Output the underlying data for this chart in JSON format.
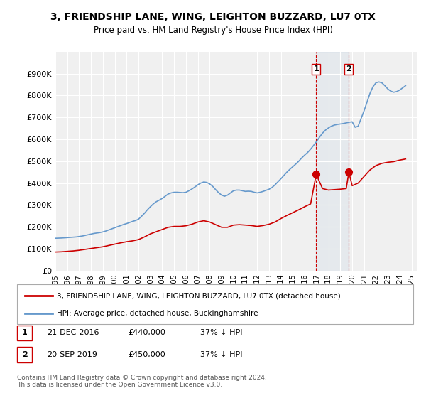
{
  "title": "3, FRIENDSHIP LANE, WING, LEIGHTON BUZZARD, LU7 0TX",
  "subtitle": "Price paid vs. HM Land Registry's House Price Index (HPI)",
  "ylabel": "",
  "ylim": [
    0,
    1000000
  ],
  "yticks": [
    0,
    100000,
    200000,
    300000,
    400000,
    500000,
    600000,
    700000,
    800000,
    900000
  ],
  "ytick_labels": [
    "£0",
    "£100K",
    "£200K",
    "£300K",
    "£400K",
    "£500K",
    "£600K",
    "£700K",
    "£800K",
    "£900K"
  ],
  "background_color": "#ffffff",
  "plot_bg_color": "#f0f0f0",
  "hpi_color": "#6699cc",
  "price_color": "#cc0000",
  "vline_color": "#cc0000",
  "sale1_date": 2016.97,
  "sale1_price": 440000,
  "sale2_date": 2019.72,
  "sale2_price": 450000,
  "legend_label_price": "3, FRIENDSHIP LANE, WING, LEIGHTON BUZZARD, LU7 0TX (detached house)",
  "legend_label_hpi": "HPI: Average price, detached house, Buckinghamshire",
  "annotation1_label": "1",
  "annotation1_date": "21-DEC-2016",
  "annotation1_price": "£440,000",
  "annotation1_hpi": "37% ↓ HPI",
  "annotation2_label": "2",
  "annotation2_date": "20-SEP-2019",
  "annotation2_price": "£450,000",
  "annotation2_hpi": "37% ↓ HPI",
  "footer": "Contains HM Land Registry data © Crown copyright and database right 2024.\nThis data is licensed under the Open Government Licence v3.0.",
  "hpi_data": {
    "years": [
      1995.0,
      1995.25,
      1995.5,
      1995.75,
      1996.0,
      1996.25,
      1996.5,
      1996.75,
      1997.0,
      1997.25,
      1997.5,
      1997.75,
      1998.0,
      1998.25,
      1998.5,
      1998.75,
      1999.0,
      1999.25,
      1999.5,
      1999.75,
      2000.0,
      2000.25,
      2000.5,
      2000.75,
      2001.0,
      2001.25,
      2001.5,
      2001.75,
      2002.0,
      2002.25,
      2002.5,
      2002.75,
      2003.0,
      2003.25,
      2003.5,
      2003.75,
      2004.0,
      2004.25,
      2004.5,
      2004.75,
      2005.0,
      2005.25,
      2005.5,
      2005.75,
      2006.0,
      2006.25,
      2006.5,
      2006.75,
      2007.0,
      2007.25,
      2007.5,
      2007.75,
      2008.0,
      2008.25,
      2008.5,
      2008.75,
      2009.0,
      2009.25,
      2009.5,
      2009.75,
      2010.0,
      2010.25,
      2010.5,
      2010.75,
      2011.0,
      2011.25,
      2011.5,
      2011.75,
      2012.0,
      2012.25,
      2012.5,
      2012.75,
      2013.0,
      2013.25,
      2013.5,
      2013.75,
      2014.0,
      2014.25,
      2014.5,
      2014.75,
      2015.0,
      2015.25,
      2015.5,
      2015.75,
      2016.0,
      2016.25,
      2016.5,
      2016.75,
      2017.0,
      2017.25,
      2017.5,
      2017.75,
      2018.0,
      2018.25,
      2018.5,
      2018.75,
      2019.0,
      2019.25,
      2019.5,
      2019.75,
      2020.0,
      2020.25,
      2020.5,
      2020.75,
      2021.0,
      2021.25,
      2021.5,
      2021.75,
      2022.0,
      2022.25,
      2022.5,
      2022.75,
      2023.0,
      2023.25,
      2023.5,
      2023.75,
      2024.0,
      2024.25,
      2024.5
    ],
    "values": [
      148000,
      148500,
      149000,
      150000,
      151000,
      152000,
      153000,
      154000,
      156000,
      158000,
      161000,
      164000,
      167000,
      170000,
      172000,
      174000,
      177000,
      181000,
      186000,
      191000,
      196000,
      201000,
      206000,
      211000,
      215000,
      220000,
      225000,
      229000,
      235000,
      248000,
      262000,
      278000,
      292000,
      305000,
      315000,
      322000,
      330000,
      340000,
      350000,
      355000,
      358000,
      358000,
      357000,
      356000,
      358000,
      365000,
      373000,
      382000,
      392000,
      400000,
      405000,
      403000,
      396000,
      385000,
      370000,
      356000,
      345000,
      340000,
      345000,
      355000,
      365000,
      368000,
      368000,
      365000,
      362000,
      363000,
      362000,
      358000,
      355000,
      358000,
      362000,
      367000,
      372000,
      380000,
      392000,
      406000,
      420000,
      435000,
      450000,
      463000,
      475000,
      487000,
      500000,
      515000,
      528000,
      540000,
      555000,
      572000,
      590000,
      610000,
      628000,
      642000,
      652000,
      660000,
      665000,
      668000,
      670000,
      672000,
      675000,
      678000,
      680000,
      655000,
      660000,
      695000,
      730000,
      770000,
      810000,
      840000,
      858000,
      862000,
      858000,
      845000,
      830000,
      820000,
      815000,
      818000,
      825000,
      835000,
      845000
    ]
  },
  "price_series": {
    "years": [
      1995.0,
      1995.5,
      1996.0,
      1996.5,
      1997.0,
      1997.5,
      1998.0,
      1998.5,
      1999.0,
      1999.5,
      2000.0,
      2000.5,
      2001.0,
      2001.5,
      2002.0,
      2002.5,
      2003.0,
      2003.5,
      2004.0,
      2004.5,
      2005.0,
      2005.5,
      2006.0,
      2006.5,
      2007.0,
      2007.5,
      2008.0,
      2008.5,
      2009.0,
      2009.5,
      2010.0,
      2010.5,
      2011.0,
      2011.5,
      2012.0,
      2012.5,
      2013.0,
      2013.5,
      2014.0,
      2014.5,
      2015.0,
      2015.5,
      2016.0,
      2016.5,
      2016.97,
      2017.5,
      2018.0,
      2018.5,
      2019.0,
      2019.5,
      2019.72,
      2020.0,
      2020.5,
      2021.0,
      2021.5,
      2022.0,
      2022.5,
      2023.0,
      2023.5,
      2024.0,
      2024.5
    ],
    "values": [
      85000,
      86000,
      88000,
      90000,
      93000,
      97000,
      101000,
      105000,
      109000,
      115000,
      121000,
      127000,
      132000,
      136000,
      142000,
      154000,
      168000,
      178000,
      188000,
      198000,
      202000,
      202000,
      205000,
      212000,
      222000,
      228000,
      222000,
      210000,
      198000,
      198000,
      208000,
      210000,
      208000,
      206000,
      202000,
      206000,
      212000,
      222000,
      238000,
      252000,
      265000,
      278000,
      292000,
      305000,
      440000,
      375000,
      368000,
      370000,
      372000,
      375000,
      450000,
      388000,
      400000,
      430000,
      460000,
      480000,
      490000,
      495000,
      498000,
      505000,
      510000
    ]
  }
}
